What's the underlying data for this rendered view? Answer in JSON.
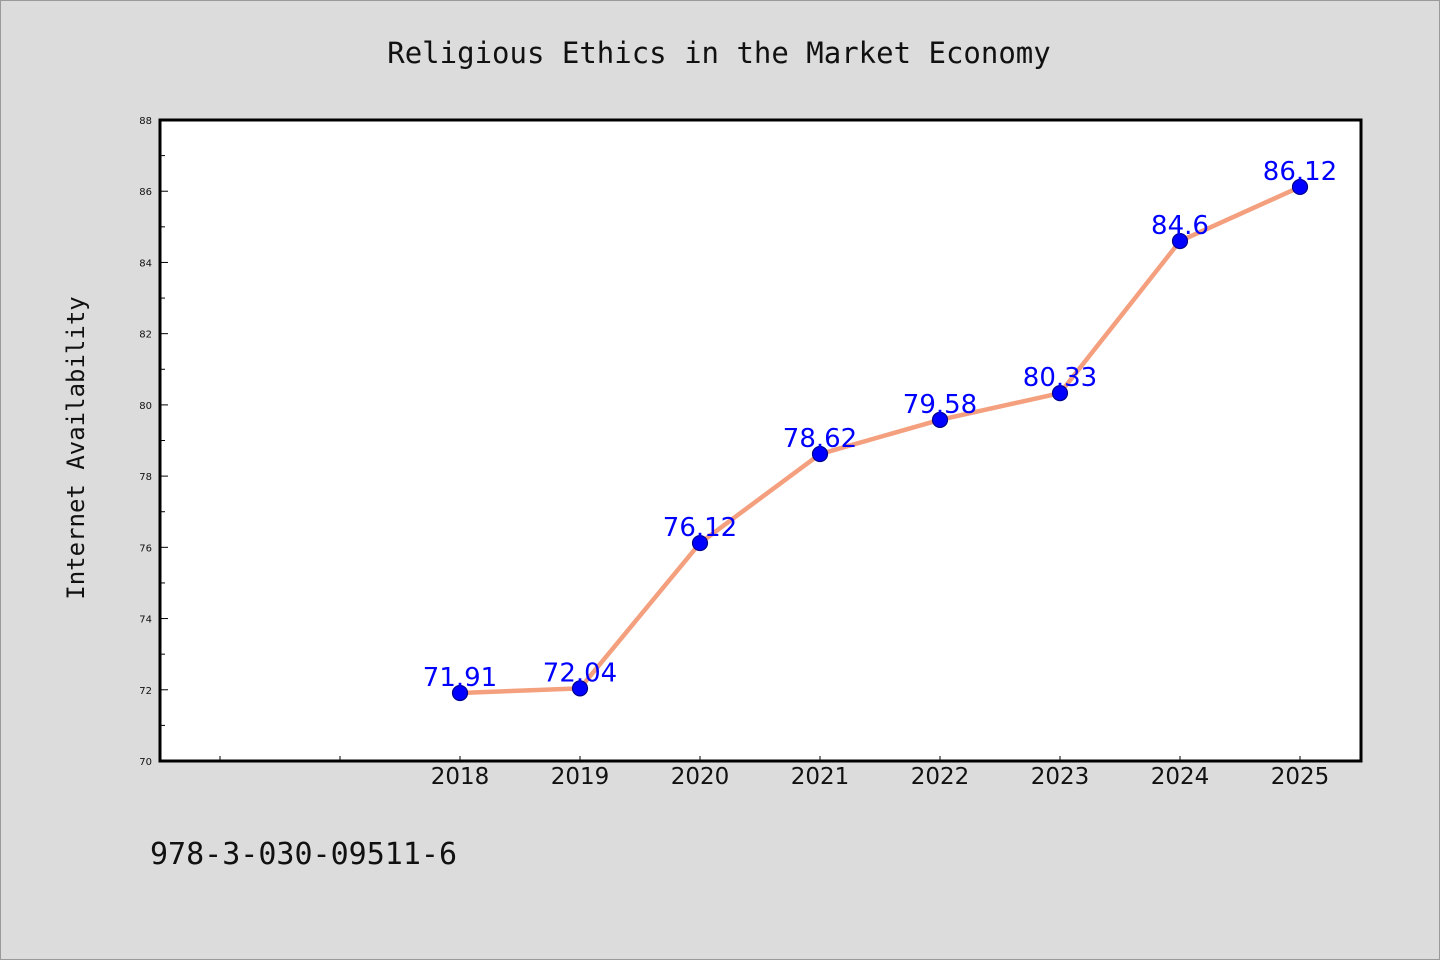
{
  "chart_data": {
    "type": "line",
    "title": "Religious Ethics in the Market Economy",
    "xlabel": "",
    "ylabel": "Internet Availability",
    "categories": [
      "2018",
      "2019",
      "2020",
      "2021",
      "2022",
      "2023",
      "2024",
      "2025"
    ],
    "values": [
      71.91,
      72.04,
      76.12,
      78.62,
      79.58,
      80.33,
      84.6,
      86.12
    ],
    "data_labels": [
      "71.91",
      "72.04",
      "76.12",
      "78.62",
      "79.58",
      "80.33",
      "84.6",
      "86.12"
    ],
    "ylim": [
      70,
      88
    ],
    "yticks": [
      70,
      72,
      74,
      76,
      78,
      80,
      82,
      84,
      86,
      88
    ],
    "ytick_labels": [
      "70",
      "72",
      "74",
      "76",
      "78",
      "80",
      "82",
      "84",
      "86",
      "88"
    ],
    "grid": false,
    "legend": "none",
    "colors": {
      "line": "#f4a07e",
      "marker": "#0000ff",
      "marker_edge": "#00008b",
      "data_label": "#0000ff",
      "background": "#dcdcdc",
      "plot_background": "#ffffff"
    }
  },
  "footer": {
    "text": "978-3-030-09511-6"
  }
}
